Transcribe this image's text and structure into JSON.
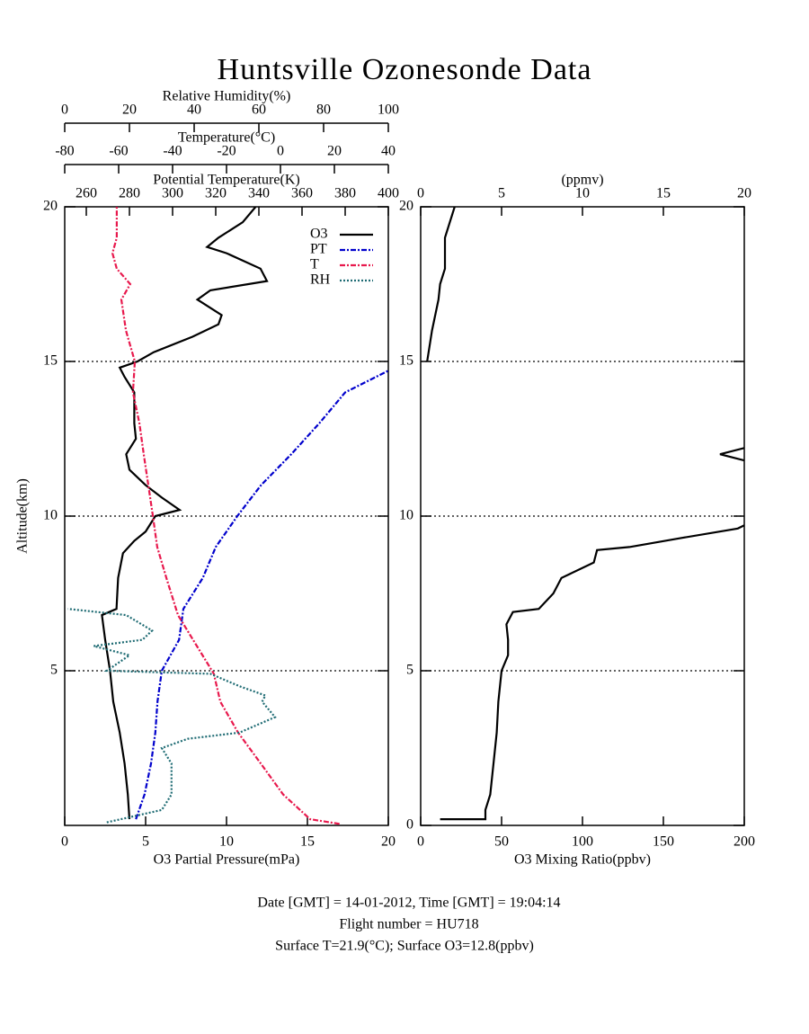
{
  "title": "Huntsville Ozonesonde Data",
  "footer": [
    "Date [GMT] = 14-01-2012,  Time [GMT] = 19:04:14",
    "Flight number = HU718",
    "Surface T=21.9(°C); Surface O3=12.8(ppbv)"
  ],
  "chart_data": [
    {
      "type": "line",
      "ylabel": "Altitude(km)",
      "ylim": [
        0,
        20
      ],
      "yticks": [
        5,
        10,
        15,
        20
      ],
      "hlines": [
        5,
        10,
        15
      ],
      "xlabel": "O3 Partial Pressure(mPa)",
      "xlim": [
        0,
        20
      ],
      "xticks": [
        0,
        5,
        10,
        15,
        20
      ],
      "x2label": "Potential Temperature(K)",
      "x2lim": [
        250,
        400
      ],
      "x2ticks": [
        260,
        280,
        300,
        320,
        340,
        360,
        380,
        400
      ],
      "x3label": "Temperature(°C)",
      "x3lim": [
        -80,
        40
      ],
      "x3ticks": [
        -80,
        -60,
        -40,
        -20,
        0,
        20,
        40
      ],
      "x4label": "Relative Humidity(%)",
      "x4lim": [
        0,
        100
      ],
      "x4ticks": [
        0,
        20,
        40,
        60,
        80,
        100
      ],
      "legend": "upper right",
      "series": [
        {
          "name": "O3",
          "color": "#000000",
          "axis": "x",
          "style": "solid",
          "altitude": [
            0.2,
            1,
            2,
            3,
            4,
            5,
            6,
            6.8,
            7,
            8,
            8.8,
            9.2,
            9.5,
            10,
            10.2,
            10.6,
            11,
            11.5,
            12,
            12.5,
            13,
            14,
            14.5,
            14.8,
            15,
            15.3,
            15.8,
            16.2,
            16.5,
            17,
            17.3,
            17.6,
            18,
            18.5,
            18.7,
            19,
            19.5,
            20
          ],
          "values": [
            4.0,
            3.9,
            3.7,
            3.4,
            3.0,
            2.8,
            2.5,
            2.3,
            3.2,
            3.3,
            3.6,
            4.3,
            5.0,
            5.6,
            7.1,
            6.0,
            5.0,
            4.0,
            3.8,
            4.4,
            4.3,
            4.3,
            3.7,
            3.4,
            4.5,
            5.5,
            7.9,
            9.5,
            9.7,
            8.2,
            9.0,
            12.5,
            12.1,
            10.0,
            8.8,
            9.5,
            11.0,
            11.8
          ]
        },
        {
          "name": "PT",
          "color": "#0000cc",
          "axis": "x2",
          "style": "dashdot",
          "altitude": [
            0.2,
            1,
            2,
            3,
            4,
            5,
            6,
            7,
            8,
            9,
            10,
            11,
            12,
            13,
            14,
            14.7
          ],
          "values": [
            283,
            287,
            290,
            292,
            293,
            295,
            303,
            305,
            314,
            320,
            330,
            341,
            355,
            368,
            380,
            400
          ]
        },
        {
          "name": "T",
          "color": "#e8194d",
          "axis": "x3",
          "style": "dashdot",
          "altitude": [
            0.05,
            0.2,
            1,
            2,
            3,
            4,
            4.9,
            6.8,
            8,
            9,
            10,
            11,
            12,
            13,
            14,
            15,
            16,
            17,
            17.5,
            18,
            18.5,
            19,
            20
          ],
          "values": [
            21.9,
            11,
            1,
            -7.3,
            -15.7,
            -22.3,
            -24.7,
            -38,
            -42.3,
            -45.7,
            -47.3,
            -49,
            -50.7,
            -52.3,
            -54.7,
            -54,
            -57.3,
            -59,
            -55.7,
            -60.7,
            -62.3,
            -60.7,
            -60.7
          ]
        },
        {
          "name": "RH",
          "color": "#1e6b73",
          "axis": "x4",
          "style": "dotted",
          "altitude": [
            0.1,
            0.5,
            1,
            2,
            2.5,
            2.8,
            3,
            3.5,
            4,
            4.2,
            4.5,
            4.9,
            5,
            5.5,
            5.8,
            6,
            6.3,
            6.8,
            7
          ],
          "values": [
            13,
            30,
            33,
            33,
            30,
            38,
            54,
            65,
            61,
            62,
            54,
            45,
            13,
            20,
            9,
            24,
            27,
            19,
            1
          ]
        }
      ]
    },
    {
      "type": "line",
      "ylim": [
        0,
        20
      ],
      "yticks": [
        0,
        5,
        10,
        15,
        20
      ],
      "hlines": [
        5,
        10,
        15
      ],
      "xlabel": "O3 Mixing Ratio(ppbv)",
      "xlim": [
        0,
        200
      ],
      "xticks": [
        0,
        50,
        100,
        150,
        200
      ],
      "x2label": "(ppmv)",
      "x2lim": [
        0,
        20
      ],
      "x2ticks": [
        0,
        5,
        10,
        15,
        20
      ],
      "series": [
        {
          "color": "#000000",
          "axis": "x",
          "style": "solid",
          "altitude": [
            0.2,
            0.2,
            0.5,
            1,
            2,
            3,
            4,
            5,
            5.5,
            6,
            6.5,
            6.9,
            7,
            7.5,
            8,
            8.5,
            8.9,
            9,
            9.3,
            9.6,
            9.7,
            null,
            11.8,
            12.0,
            12.2
          ],
          "values": [
            12,
            40,
            40,
            43,
            45,
            47,
            48,
            50,
            54,
            54,
            53,
            57,
            73,
            82,
            87,
            107,
            109,
            129,
            162,
            196,
            200,
            null,
            200,
            185,
            200
          ]
        },
        {
          "color": "#000000",
          "axis": "x2",
          "style": "solid",
          "altitude": [
            15,
            16,
            17,
            17.5,
            18,
            19,
            20
          ],
          "values": [
            0.4,
            0.7,
            1.1,
            1.2,
            1.5,
            1.5,
            2.1
          ]
        }
      ]
    }
  ]
}
